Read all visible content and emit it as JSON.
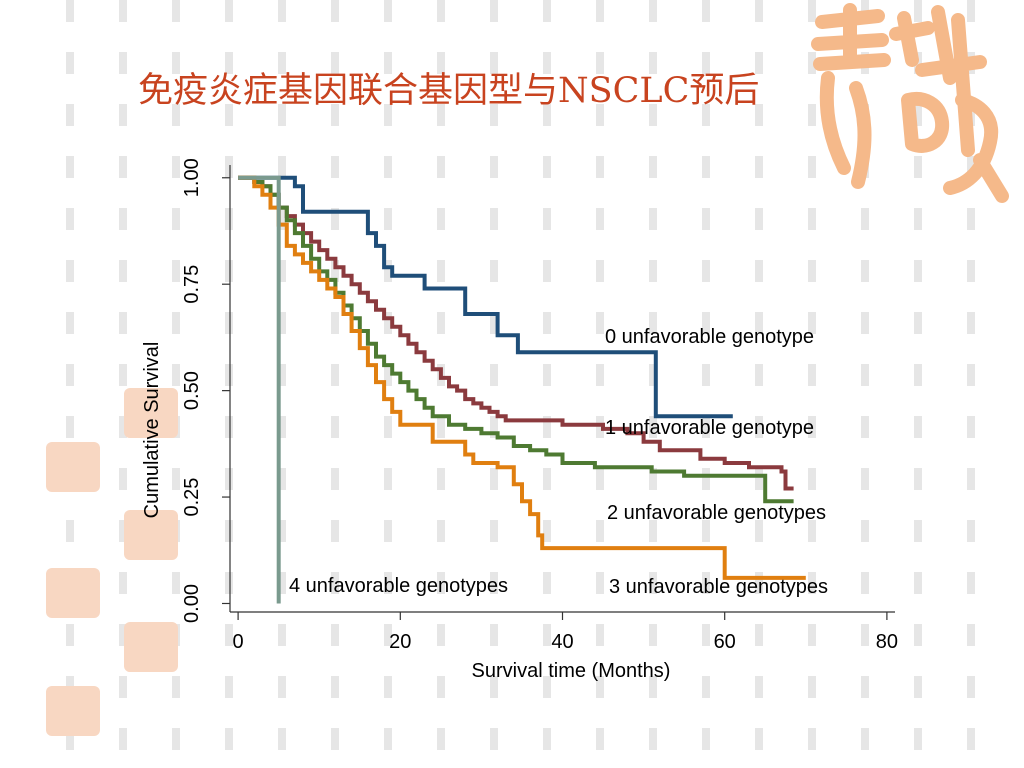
{
  "slide": {
    "title": "免疫炎症基因联合基因型与NSCLC预后"
  },
  "colors": {
    "title": "#c8431f",
    "series_0": "#1f4e79",
    "series_1": "#8b3a3e",
    "series_2": "#4e7a32",
    "series_3": "#e07f10",
    "series_4": "#7a9a8e",
    "decor": "#f5b98a"
  },
  "decor": {
    "icon": "seal-logo-icon"
  },
  "chart_data": {
    "type": "line",
    "step": true,
    "title": "",
    "xlabel": "Survival time (Months)",
    "ylabel": "Cumulative Survival",
    "xlim": [
      -1,
      81
    ],
    "ylim": [
      -0.02,
      1.03
    ],
    "xticks": [
      0,
      20,
      40,
      60,
      80
    ],
    "yticks": [
      0.0,
      0.25,
      0.5,
      0.75,
      1.0
    ],
    "xticklabels": [
      "0",
      "20",
      "40",
      "60",
      "80"
    ],
    "yticklabels": [
      "0.00",
      "0.25",
      "0.50",
      "0.75",
      "1.00"
    ],
    "grid": false,
    "legend": "inline labels",
    "series": [
      {
        "name": "0 unfavorable genotype",
        "points": [
          [
            0,
            1.0
          ],
          [
            7,
            0.98
          ],
          [
            8,
            0.92
          ],
          [
            16,
            0.87
          ],
          [
            17,
            0.84
          ],
          [
            18,
            0.79
          ],
          [
            19,
            0.77
          ],
          [
            23,
            0.74
          ],
          [
            28,
            0.68
          ],
          [
            32,
            0.63
          ],
          [
            34.5,
            0.59
          ],
          [
            51.5,
            0.44
          ],
          [
            61,
            0.44
          ]
        ]
      },
      {
        "name": "1 unfavorable genotype",
        "points": [
          [
            0,
            1.0
          ],
          [
            2,
            0.99
          ],
          [
            3,
            0.98
          ],
          [
            4,
            0.96
          ],
          [
            5,
            0.93
          ],
          [
            6,
            0.91
          ],
          [
            7,
            0.89
          ],
          [
            8,
            0.87
          ],
          [
            9,
            0.85
          ],
          [
            10,
            0.83
          ],
          [
            11,
            0.81
          ],
          [
            12,
            0.79
          ],
          [
            13,
            0.77
          ],
          [
            14,
            0.75
          ],
          [
            15,
            0.73
          ],
          [
            16,
            0.71
          ],
          [
            17,
            0.69
          ],
          [
            18,
            0.67
          ],
          [
            19,
            0.65
          ],
          [
            20,
            0.63
          ],
          [
            21,
            0.61
          ],
          [
            22,
            0.59
          ],
          [
            23,
            0.57
          ],
          [
            24,
            0.55
          ],
          [
            25,
            0.53
          ],
          [
            26,
            0.51
          ],
          [
            27,
            0.5
          ],
          [
            28,
            0.48
          ],
          [
            29,
            0.47
          ],
          [
            30,
            0.46
          ],
          [
            31,
            0.45
          ],
          [
            32,
            0.44
          ],
          [
            33,
            0.43
          ],
          [
            40,
            0.42
          ],
          [
            45,
            0.41
          ],
          [
            48,
            0.4
          ],
          [
            50,
            0.38
          ],
          [
            52,
            0.36
          ],
          [
            57,
            0.34
          ],
          [
            60,
            0.33
          ],
          [
            63,
            0.32
          ],
          [
            67,
            0.31
          ],
          [
            67.5,
            0.27
          ],
          [
            68.5,
            0.27
          ]
        ]
      },
      {
        "name": "2 unfavorable genotypes",
        "points": [
          [
            0,
            1.0
          ],
          [
            2,
            0.99
          ],
          [
            3,
            0.98
          ],
          [
            4,
            0.96
          ],
          [
            5,
            0.93
          ],
          [
            6,
            0.9
          ],
          [
            7,
            0.87
          ],
          [
            8,
            0.84
          ],
          [
            9,
            0.81
          ],
          [
            10,
            0.78
          ],
          [
            11,
            0.76
          ],
          [
            12,
            0.73
          ],
          [
            13,
            0.7
          ],
          [
            14,
            0.67
          ],
          [
            15,
            0.64
          ],
          [
            16,
            0.61
          ],
          [
            17,
            0.58
          ],
          [
            18,
            0.56
          ],
          [
            19,
            0.54
          ],
          [
            20,
            0.52
          ],
          [
            21,
            0.5
          ],
          [
            22,
            0.48
          ],
          [
            23,
            0.46
          ],
          [
            24,
            0.44
          ],
          [
            26,
            0.42
          ],
          [
            28,
            0.41
          ],
          [
            30,
            0.4
          ],
          [
            32,
            0.39
          ],
          [
            34,
            0.37
          ],
          [
            36,
            0.36
          ],
          [
            38,
            0.35
          ],
          [
            40,
            0.33
          ],
          [
            44,
            0.32
          ],
          [
            51,
            0.31
          ],
          [
            55,
            0.3
          ],
          [
            65,
            0.24
          ],
          [
            68.5,
            0.24
          ]
        ]
      },
      {
        "name": "3 unfavorable genotypes",
        "points": [
          [
            0,
            1.0
          ],
          [
            2,
            0.98
          ],
          [
            3,
            0.96
          ],
          [
            4,
            0.93
          ],
          [
            5,
            0.89
          ],
          [
            6,
            0.84
          ],
          [
            7,
            0.82
          ],
          [
            8,
            0.8
          ],
          [
            9,
            0.78
          ],
          [
            10,
            0.76
          ],
          [
            11,
            0.74
          ],
          [
            12,
            0.72
          ],
          [
            13,
            0.68
          ],
          [
            14,
            0.64
          ],
          [
            15,
            0.6
          ],
          [
            16,
            0.56
          ],
          [
            17,
            0.52
          ],
          [
            18,
            0.48
          ],
          [
            19,
            0.45
          ],
          [
            20,
            0.42
          ],
          [
            24,
            0.38
          ],
          [
            28,
            0.35
          ],
          [
            29,
            0.33
          ],
          [
            32,
            0.32
          ],
          [
            34,
            0.28
          ],
          [
            35,
            0.24
          ],
          [
            36,
            0.21
          ],
          [
            37,
            0.16
          ],
          [
            37.5,
            0.13
          ],
          [
            45,
            0.13
          ],
          [
            60,
            0.06
          ],
          [
            70,
            0.06
          ]
        ]
      },
      {
        "name": "4 unfavorable genotypes",
        "points": [
          [
            0,
            1.0
          ],
          [
            5,
            1.0
          ],
          [
            5,
            0.0
          ]
        ]
      }
    ]
  }
}
